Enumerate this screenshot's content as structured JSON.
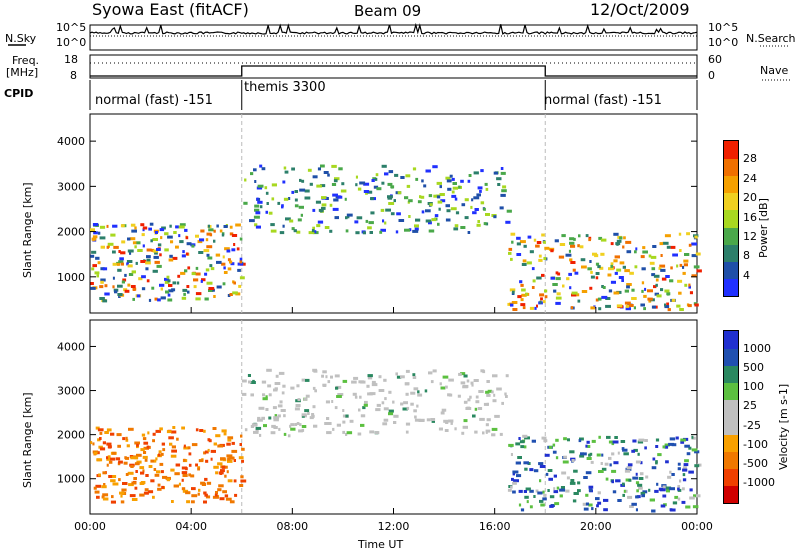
{
  "header": {
    "title": "Syowa East (fitACF)",
    "beam": "Beam 09",
    "date": "12/Oct/2009"
  },
  "summary_labels": {
    "nsky": "N.Sky",
    "nsearch": "N.Search",
    "freq": "Freq.",
    "freq_unit": "[MHz]",
    "nave": "Nave",
    "cpid": "CPID"
  },
  "summary_ticks": {
    "noise_left": [
      "10^5",
      "10^0"
    ],
    "noise_right": [
      "10^5",
      "10^0"
    ],
    "freq_left": [
      "18",
      "8"
    ],
    "nave_right": [
      "60",
      "0"
    ]
  },
  "cpid_segments": [
    {
      "label": "normal (fast) -151",
      "start_hour": 0
    },
    {
      "label": "themis 3300",
      "start_hour": 6
    },
    {
      "label": "normal (fast) -151",
      "start_hour": 18
    }
  ],
  "colors": {
    "power_scale": [
      "#2030ff",
      "#1f4fa8",
      "#2c7f6a",
      "#4aa84a",
      "#a8d820",
      "#f0d020",
      "#f5a000",
      "#f07000",
      "#f02000"
    ],
    "velocity_scale": [
      "#d00000",
      "#f04000",
      "#f07800",
      "#f8a000",
      "#c0c0c0",
      "#c0c0c0",
      "#5cc040",
      "#2a8860",
      "#2050b0",
      "#2030d0"
    ]
  },
  "chart_data": [
    {
      "type": "heatmap",
      "title": "",
      "quantity": "Power",
      "unit_label": "Power [dB]",
      "ylabel": "Slant Range [km]",
      "xlabel": "",
      "x_range_hours": [
        0,
        24
      ],
      "ylim": [
        200,
        4600
      ],
      "y_ticks": [
        1000,
        2000,
        3000,
        4000
      ],
      "x_ticks": [
        "00:00",
        "04:00",
        "08:00",
        "12:00",
        "16:00",
        "20:00",
        "00:00"
      ],
      "colorbar_ticks": [
        "28",
        "24",
        "20",
        "16",
        "12",
        "8",
        "4"
      ],
      "echo_regions": [
        {
          "hours": [
            0.0,
            6.0
          ],
          "range_km": [
            500,
            2200
          ],
          "level": "mixed, peaks 28"
        },
        {
          "hours": [
            6.0,
            16.5
          ],
          "range_km": [
            2000,
            3500
          ],
          "level": "mostly 4-16"
        },
        {
          "hours": [
            16.5,
            24.0
          ],
          "range_km": [
            300,
            2000
          ],
          "level": "mixed, peaks 24"
        }
      ]
    },
    {
      "type": "heatmap",
      "title": "",
      "quantity": "Velocity",
      "unit_label": "Velocity [m s-1]",
      "ylabel": "Slant Range [km]",
      "xlabel": "Time UT",
      "x_range_hours": [
        0,
        24
      ],
      "ylim": [
        200,
        4600
      ],
      "y_ticks": [
        1000,
        2000,
        3000,
        4000
      ],
      "x_ticks": [
        "00:00",
        "04:00",
        "08:00",
        "12:00",
        "16:00",
        "20:00",
        "00:00"
      ],
      "colorbar_ticks": [
        "1000",
        "500",
        "100",
        "25",
        "-25",
        "-100",
        "-500",
        "-1000"
      ],
      "echo_regions": [
        {
          "hours": [
            0.0,
            6.0
          ],
          "range_km": [
            500,
            2200
          ],
          "level": "-100 to -500 (orange)"
        },
        {
          "hours": [
            6.0,
            16.5
          ],
          "range_km": [
            2000,
            3500
          ],
          "level": "ground scatter (grey)"
        },
        {
          "hours": [
            16.5,
            24.0
          ],
          "range_km": [
            300,
            2000
          ],
          "level": "mixed, green/blue"
        }
      ]
    }
  ]
}
